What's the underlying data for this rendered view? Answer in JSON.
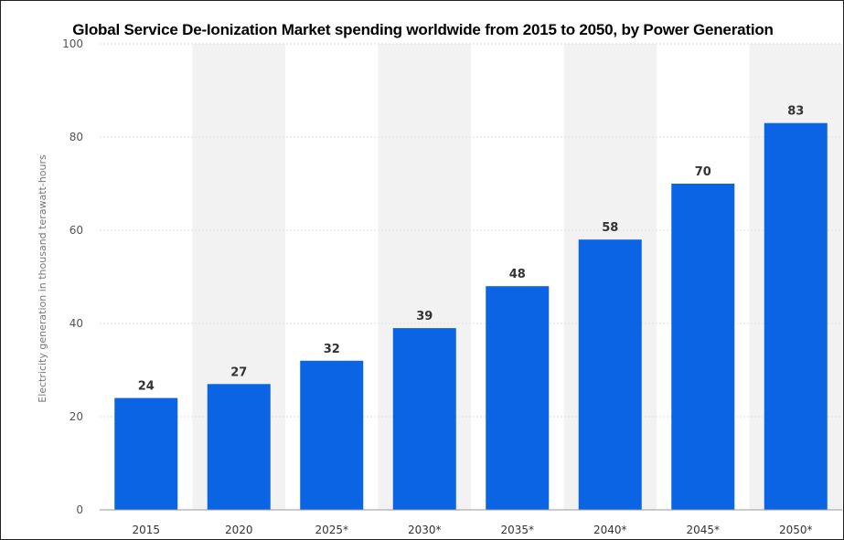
{
  "chart_data": {
    "type": "bar",
    "title": "Global Service De-Ionization Market spending worldwide from 2015 to 2050, by Power Generation",
    "xlabel": "",
    "ylabel": "Electricity generation in thousand terawatt-hours",
    "categories": [
      "2015",
      "2020",
      "2025*",
      "2030*",
      "2035*",
      "2040*",
      "2045*",
      "2050*"
    ],
    "values": [
      24,
      27,
      32,
      39,
      48,
      58,
      70,
      83
    ],
    "ylim": [
      0,
      100
    ],
    "yticks": [
      0,
      20,
      40,
      60,
      80,
      100
    ],
    "grid": true,
    "alternating_column_shading": true,
    "legend": "none",
    "bar_color": "#0b64e3",
    "shade_color": "#f2f2f2",
    "grid_color": "#e2e2e2"
  }
}
